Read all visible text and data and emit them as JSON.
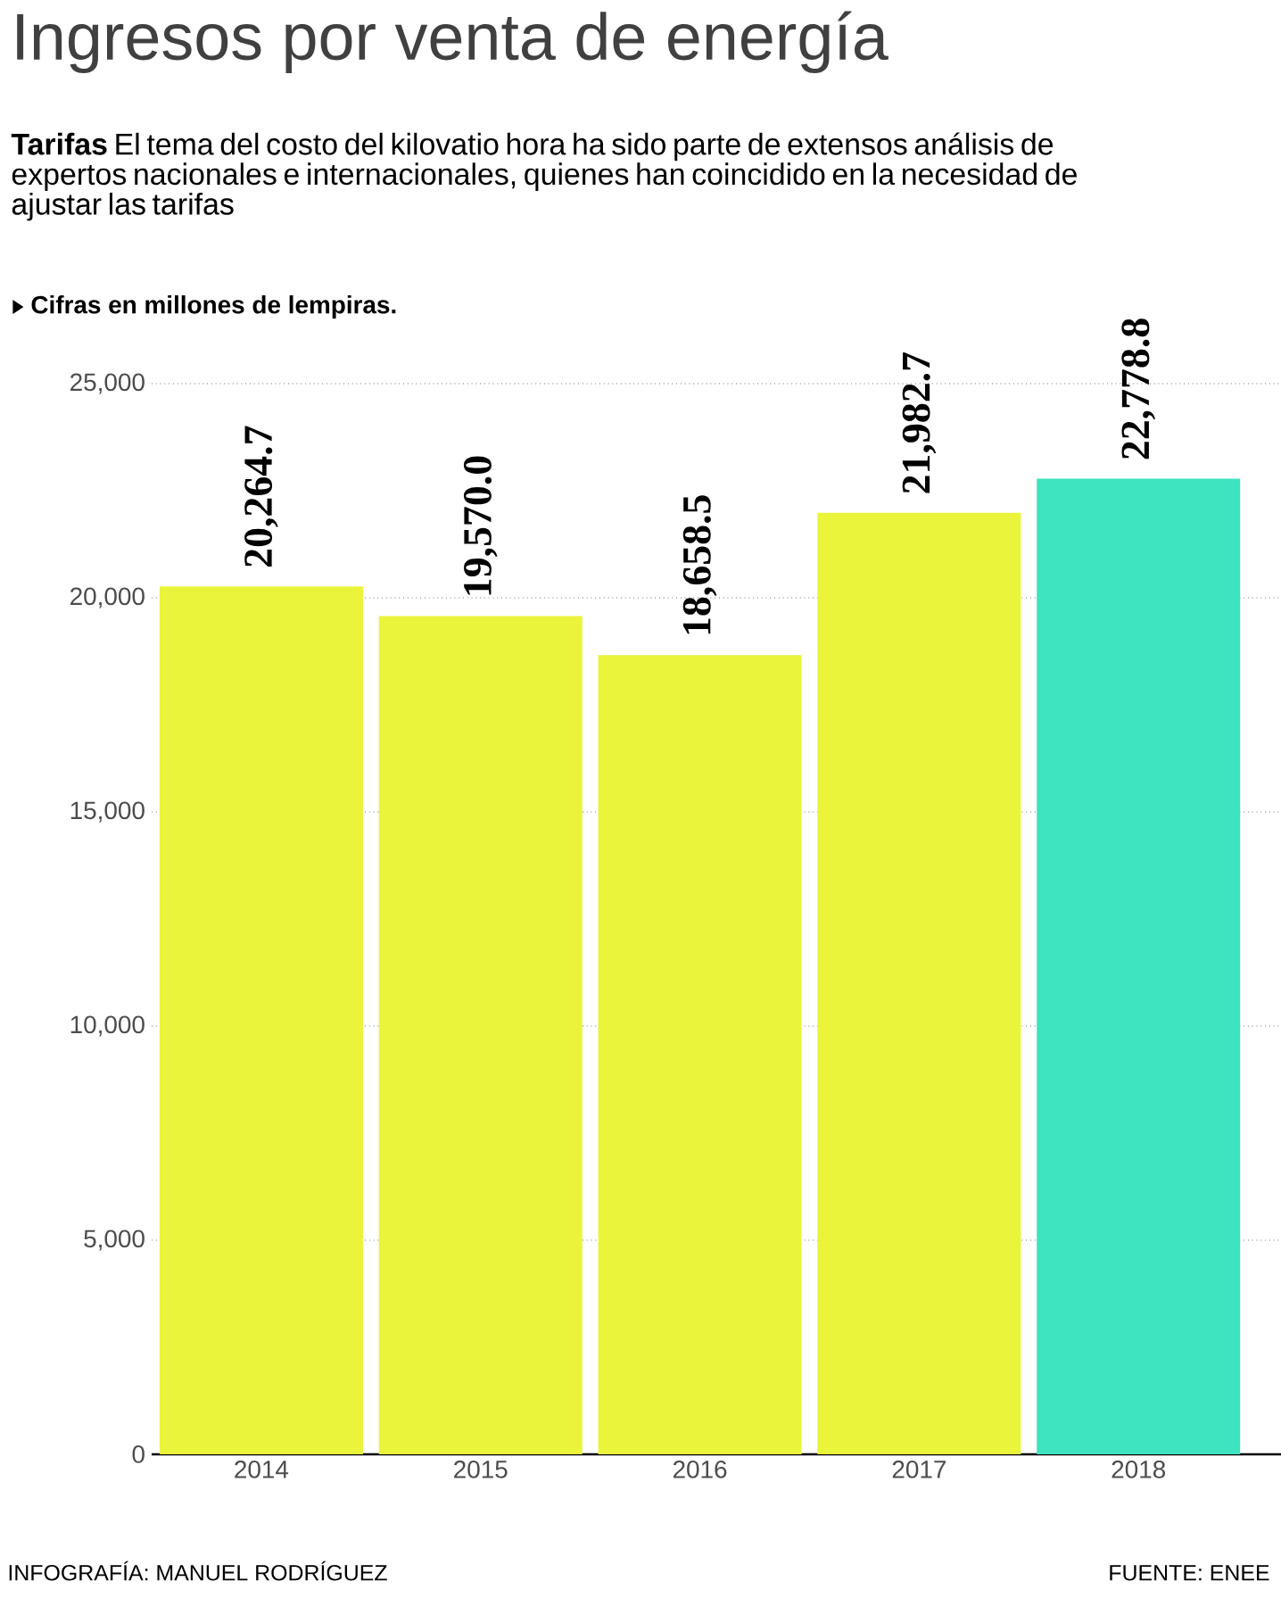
{
  "chart_data": {
    "type": "bar",
    "title": "Ingresos por venta de energía",
    "subtitle": "**Tarifas** El tema del costo del kilovatio hora ha sido parte de extensos análisis de expertos nacionales e internacionales, quienes han coincidido en la necesidad de ajustar las tarifas",
    "annotations": [
      "Cifras en millones de lempiras.",
      "INFOGRAFÍA: MANUEL RODRÍGUEZ",
      "FUENTE: ENEE"
    ],
    "categories": [
      "2014",
      "2015",
      "2016",
      "2017",
      "2018"
    ],
    "values": [
      20264.7,
      19570.0,
      18658.5,
      21982.7,
      22778.8
    ],
    "value_labels": [
      "20,264.7",
      "19,570.0",
      "18,658.5",
      "21,982.7",
      "22,778.8"
    ],
    "colors": [
      "#e9f43a",
      "#e9f43a",
      "#e9f43a",
      "#e9f43a",
      "#3ee3c0"
    ],
    "ylim": [
      0,
      25000
    ],
    "yticks": [
      {
        "value": 0,
        "label": "0"
      },
      {
        "value": 5000,
        "label": "5,000"
      },
      {
        "value": 10000,
        "label": "10,000"
      },
      {
        "value": 15000,
        "label": "15,000"
      },
      {
        "value": 20000,
        "label": "20,000"
      },
      {
        "value": 25000,
        "label": "25,000"
      }
    ],
    "grid": "y"
  }
}
